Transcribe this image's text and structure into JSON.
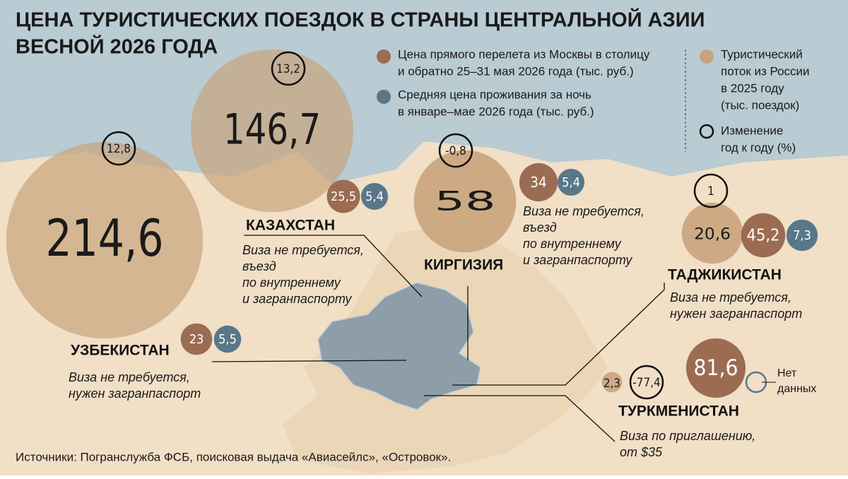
{
  "header": {
    "title_lines": [
      "ЦЕНА ТУРИСТИЧЕСКИХ ПОЕЗДОК В СТРАНЫ ЦЕНТРАЛЬНОЙ АЗИИ",
      "ВЕСНОЙ 2026 ГОДА"
    ]
  },
  "legend": {
    "flight": {
      "lines": [
        "Цена прямого перелета из Москвы в столицу",
        "и обратно 25–31 мая 2026 года (тыс. руб.)"
      ],
      "color": "#9c6c52"
    },
    "hotel": {
      "lines": [
        "Средняя цена проживания за ночь",
        "в январе–мае 2026 года (тыс. руб.)"
      ],
      "color": "#587789"
    },
    "flow": {
      "lines": [
        "Туристический",
        "поток из России",
        "в 2025 году",
        "(тыс. поездок)"
      ],
      "color": "#c9a47c"
    },
    "change": {
      "lines": [
        "Изменение",
        "год к году (%)"
      ]
    }
  },
  "countries": [
    {
      "name": "УЗБЕКИСТАН",
      "flow": {
        "value": 214.6,
        "label": "214,6"
      },
      "change": {
        "value": 12.8,
        "label": "12,8"
      },
      "flight": 23,
      "hotel": {
        "value": 5.5,
        "label": "5,5"
      },
      "note": [
        "Виза не требуется,",
        "нужен загранпаспорт"
      ]
    },
    {
      "name": "КАЗАХСТАН",
      "flow": {
        "value": 146.7,
        "label": "146,7"
      },
      "change": {
        "value": 13.2,
        "label": "13,2"
      },
      "flight": {
        "value": 25.5,
        "label": "25,5"
      },
      "hotel": {
        "value": 5.4,
        "label": "5,4"
      },
      "note": [
        "Виза не требуется,",
        "въезд",
        "по внутреннему",
        "и загранпаспорту"
      ]
    },
    {
      "name": "КИРГИЗИЯ",
      "flow": 58,
      "change": {
        "value": -0.8,
        "label": "-0,8"
      },
      "flight": 34,
      "hotel": {
        "value": 5.4,
        "label": "5,4"
      },
      "note": [
        "Виза не требуется,",
        "въезд",
        "по внутреннему",
        "и загранпаспорту"
      ]
    },
    {
      "name": "ТАДЖИКИСТАН",
      "flow": {
        "value": 20.6,
        "label": "20,6"
      },
      "change": 1,
      "flight": {
        "value": 45.2,
        "label": "45,2"
      },
      "hotel": {
        "value": 7.3,
        "label": "7,3"
      },
      "note": [
        "Виза не требуется,",
        "нужен загранпаспорт"
      ]
    },
    {
      "name": "ТУРКМЕНИСТАН",
      "flow": {
        "value": 2.3,
        "label": "2,3"
      },
      "change": {
        "value": -77.4,
        "label": "-77,4"
      },
      "flight": {
        "value": 81.6,
        "label": "81,6"
      },
      "hotel": null,
      "no_data": [
        "Нет",
        "данных"
      ],
      "note": [
        "Виза по приглашению,",
        "от $35"
      ]
    }
  ],
  "source": "Источники: Погранслужба ФСБ, поисковая выдача «Авиасейлс», «Островок»."
}
